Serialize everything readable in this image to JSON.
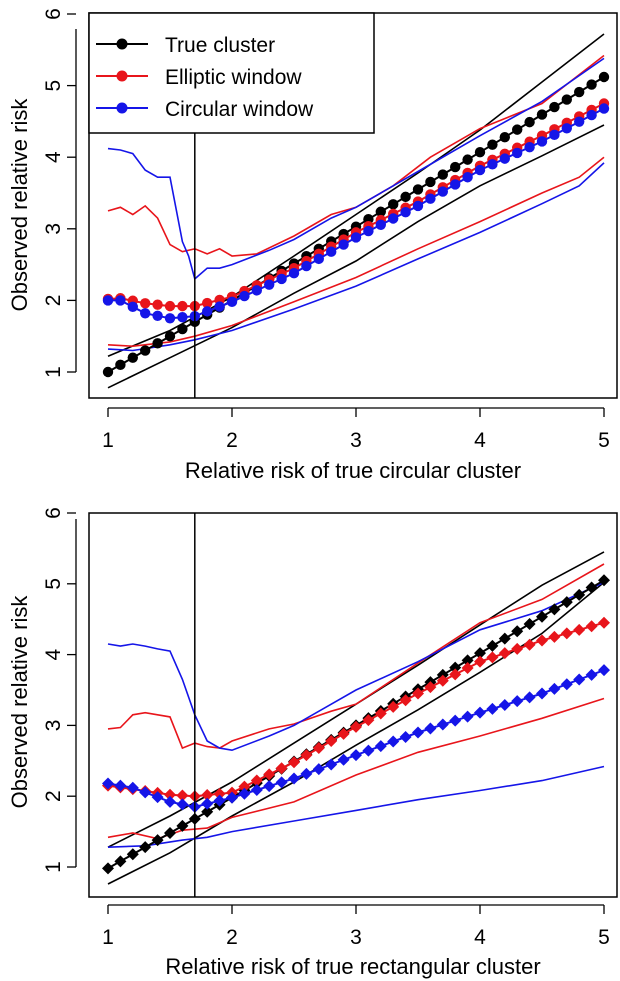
{
  "chart_data": [
    {
      "type": "line",
      "xlabel": "Relative risk of true circular cluster",
      "ylabel": "Observed relative risk",
      "xlim": [
        1,
        5
      ],
      "ylim": [
        1,
        6
      ],
      "xticks": [
        "1",
        "2",
        "3",
        "4",
        "5"
      ],
      "yticks": [
        "1",
        "2",
        "3",
        "4",
        "5",
        "6"
      ],
      "vline_x": 1.7,
      "marker": "circle",
      "grid": false,
      "legend": {
        "position": "top-left",
        "entries": [
          {
            "label": "True cluster",
            "color": "#000000"
          },
          {
            "label": "Elliptic window",
            "color": "#e8151b"
          },
          {
            "label": "Circular window",
            "color": "#1515e8"
          }
        ]
      },
      "series": [
        {
          "name": "True cluster",
          "color": "#000000",
          "role": "mean",
          "points": [
            [
              1,
              1.0
            ],
            [
              2,
              2.0
            ],
            [
              3,
              3.03
            ],
            [
              4,
              4.07
            ],
            [
              5,
              5.12
            ]
          ]
        },
        {
          "name": "True cluster",
          "color": "#000000",
          "role": "band-upper",
          "points": [
            [
              1,
              1.22
            ],
            [
              1.5,
              1.58
            ],
            [
              2,
              2.05
            ],
            [
              2.5,
              2.62
            ],
            [
              3,
              3.2
            ],
            [
              3.5,
              3.78
            ],
            [
              4,
              4.38
            ],
            [
              4.5,
              5.05
            ],
            [
              5,
              5.72
            ]
          ]
        },
        {
          "name": "True cluster",
          "color": "#000000",
          "role": "band-lower",
          "points": [
            [
              1,
              0.78
            ],
            [
              1.5,
              1.2
            ],
            [
              2,
              1.62
            ],
            [
              2.5,
              2.1
            ],
            [
              3,
              2.55
            ],
            [
              3.5,
              3.1
            ],
            [
              4,
              3.6
            ],
            [
              4.5,
              4.02
            ],
            [
              5,
              4.45
            ]
          ]
        },
        {
          "name": "Elliptic window",
          "color": "#e8151b",
          "role": "mean",
          "points": [
            [
              1,
              2.02
            ],
            [
              1.1,
              2.03
            ],
            [
              1.3,
              1.96
            ],
            [
              1.5,
              1.92
            ],
            [
              1.7,
              1.92
            ],
            [
              2,
              2.05
            ],
            [
              2.5,
              2.45
            ],
            [
              3,
              2.95
            ],
            [
              3.5,
              3.38
            ],
            [
              4,
              3.88
            ],
            [
              4.5,
              4.3
            ],
            [
              5,
              4.75
            ]
          ]
        },
        {
          "name": "Elliptic window",
          "color": "#e8151b",
          "role": "band-upper",
          "points": [
            [
              1,
              3.25
            ],
            [
              1.1,
              3.3
            ],
            [
              1.2,
              3.2
            ],
            [
              1.3,
              3.32
            ],
            [
              1.4,
              3.15
            ],
            [
              1.5,
              2.78
            ],
            [
              1.6,
              2.68
            ],
            [
              1.7,
              2.72
            ],
            [
              1.8,
              2.65
            ],
            [
              1.9,
              2.72
            ],
            [
              2,
              2.62
            ],
            [
              2.2,
              2.65
            ],
            [
              2.5,
              2.9
            ],
            [
              2.8,
              3.2
            ],
            [
              3,
              3.3
            ],
            [
              3.3,
              3.6
            ],
            [
              3.6,
              4.0
            ],
            [
              4,
              4.4
            ],
            [
              4.5,
              4.75
            ],
            [
              5,
              5.42
            ]
          ]
        },
        {
          "name": "Elliptic window",
          "color": "#e8151b",
          "role": "band-lower",
          "points": [
            [
              1,
              1.38
            ],
            [
              1.2,
              1.36
            ],
            [
              1.5,
              1.42
            ],
            [
              1.7,
              1.5
            ],
            [
              2,
              1.65
            ],
            [
              2.5,
              1.98
            ],
            [
              3,
              2.32
            ],
            [
              3.5,
              2.72
            ],
            [
              4,
              3.1
            ],
            [
              4.5,
              3.5
            ],
            [
              4.8,
              3.72
            ],
            [
              5,
              4.0
            ]
          ]
        },
        {
          "name": "Circular window",
          "color": "#1515e8",
          "role": "mean",
          "points": [
            [
              1,
              2.0
            ],
            [
              1.1,
              2.0
            ],
            [
              1.3,
              1.82
            ],
            [
              1.5,
              1.75
            ],
            [
              1.7,
              1.78
            ],
            [
              2,
              1.98
            ],
            [
              2.5,
              2.38
            ],
            [
              3,
              2.88
            ],
            [
              3.5,
              3.32
            ],
            [
              4,
              3.82
            ],
            [
              4.5,
              4.22
            ],
            [
              5,
              4.68
            ]
          ]
        },
        {
          "name": "Circular window",
          "color": "#1515e8",
          "role": "band-upper",
          "points": [
            [
              1,
              4.12
            ],
            [
              1.1,
              4.1
            ],
            [
              1.2,
              4.05
            ],
            [
              1.3,
              3.82
            ],
            [
              1.4,
              3.72
            ],
            [
              1.5,
              3.72
            ],
            [
              1.6,
              2.82
            ],
            [
              1.65,
              2.62
            ],
            [
              1.7,
              2.3
            ],
            [
              1.8,
              2.45
            ],
            [
              1.9,
              2.45
            ],
            [
              2,
              2.5
            ],
            [
              2.3,
              2.7
            ],
            [
              2.5,
              2.85
            ],
            [
              2.8,
              3.15
            ],
            [
              3,
              3.3
            ],
            [
              3.5,
              3.8
            ],
            [
              4,
              4.3
            ],
            [
              4.5,
              4.78
            ],
            [
              5,
              5.38
            ]
          ]
        },
        {
          "name": "Circular window",
          "color": "#1515e8",
          "role": "band-lower",
          "points": [
            [
              1,
              1.32
            ],
            [
              1.2,
              1.3
            ],
            [
              1.5,
              1.38
            ],
            [
              1.7,
              1.45
            ],
            [
              2,
              1.58
            ],
            [
              2.5,
              1.88
            ],
            [
              3,
              2.2
            ],
            [
              3.5,
              2.58
            ],
            [
              4,
              2.95
            ],
            [
              4.5,
              3.35
            ],
            [
              4.8,
              3.6
            ],
            [
              5,
              3.92
            ]
          ]
        }
      ]
    },
    {
      "type": "line",
      "xlabel": "Relative risk of true rectangular cluster",
      "ylabel": "Observed relative risk",
      "xlim": [
        1,
        5
      ],
      "ylim": [
        1,
        6
      ],
      "xticks": [
        "1",
        "2",
        "3",
        "4",
        "5"
      ],
      "yticks": [
        "1",
        "2",
        "3",
        "4",
        "5",
        "6"
      ],
      "vline_x": 1.7,
      "marker": "diamond",
      "grid": false,
      "series": [
        {
          "name": "True cluster",
          "color": "#000000",
          "role": "mean",
          "points": [
            [
              1,
              0.98
            ],
            [
              2,
              1.98
            ],
            [
              3,
              3.0
            ],
            [
              4,
              4.02
            ],
            [
              5,
              5.05
            ]
          ]
        },
        {
          "name": "True cluster",
          "color": "#000000",
          "role": "band-upper",
          "points": [
            [
              1,
              1.28
            ],
            [
              1.5,
              1.72
            ],
            [
              2,
              2.2
            ],
            [
              2.5,
              2.75
            ],
            [
              3,
              3.3
            ],
            [
              3.5,
              3.85
            ],
            [
              4,
              4.42
            ],
            [
              4.5,
              4.98
            ],
            [
              5,
              5.45
            ]
          ]
        },
        {
          "name": "True cluster",
          "color": "#000000",
          "role": "band-lower",
          "points": [
            [
              1,
              0.76
            ],
            [
              1.5,
              1.2
            ],
            [
              2,
              1.72
            ],
            [
              2.5,
              2.2
            ],
            [
              3,
              2.72
            ],
            [
              3.5,
              3.22
            ],
            [
              4,
              3.75
            ],
            [
              4.5,
              4.3
            ],
            [
              5,
              5.02
            ]
          ]
        },
        {
          "name": "Elliptic window",
          "color": "#e8151b",
          "role": "mean",
          "points": [
            [
              1,
              2.15
            ],
            [
              1.2,
              2.1
            ],
            [
              1.5,
              2.02
            ],
            [
              1.7,
              2.0
            ],
            [
              2,
              2.05
            ],
            [
              2.5,
              2.48
            ],
            [
              3,
              2.98
            ],
            [
              3.5,
              3.45
            ],
            [
              4,
              3.9
            ],
            [
              4.5,
              4.2
            ],
            [
              5,
              4.45
            ]
          ]
        },
        {
          "name": "Elliptic window",
          "color": "#e8151b",
          "role": "band-upper",
          "points": [
            [
              1,
              2.95
            ],
            [
              1.1,
              2.97
            ],
            [
              1.2,
              3.15
            ],
            [
              1.3,
              3.18
            ],
            [
              1.4,
              3.15
            ],
            [
              1.5,
              3.12
            ],
            [
              1.6,
              2.68
            ],
            [
              1.7,
              2.75
            ],
            [
              1.8,
              2.7
            ],
            [
              1.9,
              2.68
            ],
            [
              2,
              2.78
            ],
            [
              2.3,
              2.95
            ],
            [
              2.5,
              3.02
            ],
            [
              2.8,
              3.2
            ],
            [
              3,
              3.3
            ],
            [
              3.5,
              3.88
            ],
            [
              4,
              4.45
            ],
            [
              4.5,
              4.78
            ],
            [
              5,
              5.28
            ]
          ]
        },
        {
          "name": "Elliptic window",
          "color": "#e8151b",
          "role": "band-lower",
          "points": [
            [
              1,
              1.42
            ],
            [
              1.2,
              1.48
            ],
            [
              1.4,
              1.4
            ],
            [
              1.6,
              1.52
            ],
            [
              1.8,
              1.55
            ],
            [
              2,
              1.7
            ],
            [
              2.5,
              1.92
            ],
            [
              3,
              2.3
            ],
            [
              3.5,
              2.62
            ],
            [
              4,
              2.85
            ],
            [
              4.5,
              3.1
            ],
            [
              5,
              3.38
            ]
          ]
        },
        {
          "name": "Circular window",
          "color": "#1515e8",
          "role": "mean",
          "points": [
            [
              1,
              2.18
            ],
            [
              1.2,
              2.12
            ],
            [
              1.5,
              1.92
            ],
            [
              1.7,
              1.85
            ],
            [
              2,
              1.98
            ],
            [
              2.5,
              2.25
            ],
            [
              3,
              2.58
            ],
            [
              3.5,
              2.9
            ],
            [
              4,
              3.18
            ],
            [
              4.5,
              3.45
            ],
            [
              5,
              3.78
            ]
          ]
        },
        {
          "name": "Circular window",
          "color": "#1515e8",
          "role": "band-upper",
          "points": [
            [
              1,
              4.15
            ],
            [
              1.1,
              4.12
            ],
            [
              1.2,
              4.15
            ],
            [
              1.3,
              4.12
            ],
            [
              1.4,
              4.08
            ],
            [
              1.5,
              4.05
            ],
            [
              1.6,
              3.65
            ],
            [
              1.7,
              3.15
            ],
            [
              1.8,
              2.78
            ],
            [
              1.9,
              2.68
            ],
            [
              2,
              2.65
            ],
            [
              2.3,
              2.85
            ],
            [
              2.5,
              3.0
            ],
            [
              2.8,
              3.3
            ],
            [
              3,
              3.5
            ],
            [
              3.5,
              3.9
            ],
            [
              4,
              4.35
            ],
            [
              4.5,
              4.62
            ],
            [
              5,
              5.02
            ]
          ]
        },
        {
          "name": "Circular window",
          "color": "#1515e8",
          "role": "band-lower",
          "points": [
            [
              1,
              1.28
            ],
            [
              1.3,
              1.3
            ],
            [
              1.6,
              1.38
            ],
            [
              1.8,
              1.42
            ],
            [
              2,
              1.5
            ],
            [
              2.5,
              1.65
            ],
            [
              3,
              1.8
            ],
            [
              3.5,
              1.95
            ],
            [
              4,
              2.08
            ],
            [
              4.5,
              2.22
            ],
            [
              5,
              2.42
            ]
          ]
        }
      ]
    }
  ]
}
